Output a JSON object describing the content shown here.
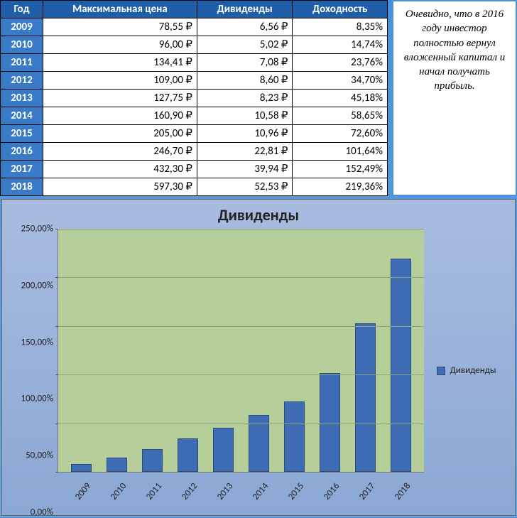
{
  "table": {
    "headers": [
      "Год",
      "Максимальная цена",
      "Дивиденды",
      "Доходность"
    ],
    "rows": [
      {
        "year": "2009",
        "price": "78,55 ₽",
        "div": "6,56 ₽",
        "yield": "8,35%"
      },
      {
        "year": "2010",
        "price": "96,00 ₽",
        "div": "5,02 ₽",
        "yield": "14,74%"
      },
      {
        "year": "2011",
        "price": "134,41 ₽",
        "div": "7,08 ₽",
        "yield": "23,76%"
      },
      {
        "year": "2012",
        "price": "109,00 ₽",
        "div": "8,60 ₽",
        "yield": "34,70%"
      },
      {
        "year": "2013",
        "price": "127,75 ₽",
        "div": "8,23 ₽",
        "yield": "45,18%"
      },
      {
        "year": "2014",
        "price": "160,90 ₽",
        "div": "10,58 ₽",
        "yield": "58,65%"
      },
      {
        "year": "2015",
        "price": "205,00 ₽",
        "div": "10,96 ₽",
        "yield": "72,60%"
      },
      {
        "year": "2016",
        "price": "246,70 ₽",
        "div": "22,81 ₽",
        "yield": "101,64%"
      },
      {
        "year": "2017",
        "price": "432,30 ₽",
        "div": "39,94 ₽",
        "yield": "152,49%"
      },
      {
        "year": "2018",
        "price": "597,30 ₽",
        "div": "52,53 ₽",
        "yield": "219,36%"
      }
    ]
  },
  "note": {
    "text": "Очевидно, что в 2016 году инвестор полностью вернул вложенный капитал и начал получать прибыль."
  },
  "chart": {
    "type": "bar",
    "title": "Дивиденды",
    "legend_label": "Дивиденды",
    "categories": [
      "2009",
      "2010",
      "2011",
      "2012",
      "2013",
      "2014",
      "2015",
      "2016",
      "2017",
      "2018"
    ],
    "values": [
      8.35,
      14.74,
      23.76,
      34.7,
      45.18,
      58.65,
      72.6,
      101.64,
      152.49,
      219.36
    ],
    "ylim": [
      0,
      250
    ],
    "ytick_step": 50,
    "ytick_labels": [
      "0,00%",
      "50,00%",
      "100,00%",
      "150,00%",
      "200,00%",
      "250,00%"
    ],
    "bar_color": "#3e6db5",
    "bar_border": "#2a4a7a",
    "plot_bg": "#b6cf9a",
    "grid_color": "#8aa57a",
    "card_bg_top": "#a9bce0",
    "card_bg_bottom": "#8aa8d4",
    "title_fontsize": 22,
    "label_fontsize": 13,
    "bar_width_ratio": 0.58
  },
  "colors": {
    "page_bg_top": "#4a90d9",
    "page_bg_bottom": "#6ba3de",
    "header_bg": "#1f5fa8",
    "year_cell_bg": "#3a7bc8"
  }
}
